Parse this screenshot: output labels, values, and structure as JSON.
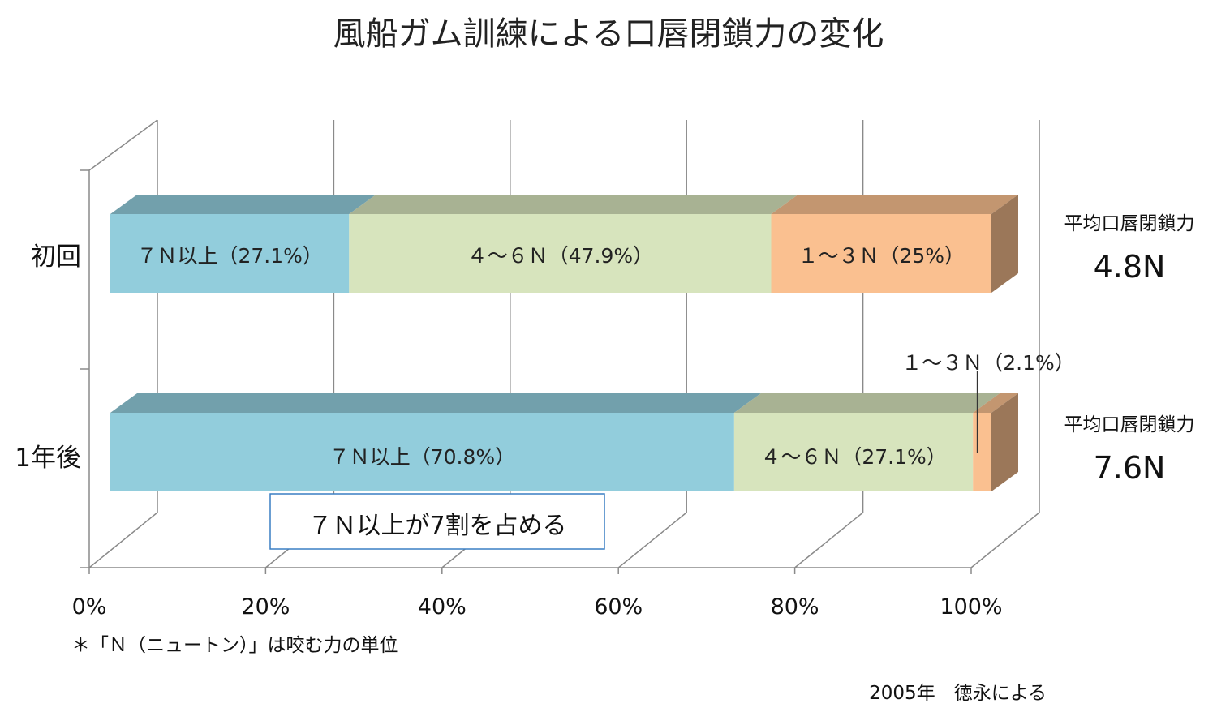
{
  "chart_data": {
    "type": "bar",
    "orientation": "horizontal",
    "stacked": "100%",
    "three_d": true,
    "title": "風船ガム訓練による口唇閉鎖力の変化",
    "categories": [
      "初回",
      "1年後"
    ],
    "xlim": [
      0,
      100
    ],
    "x_ticks": [
      "0%",
      "20%",
      "40%",
      "60%",
      "80%",
      "100%"
    ],
    "grid": true,
    "series": [
      {
        "name": "7N以上",
        "color": "#92cddc",
        "values": [
          27.1,
          70.8
        ],
        "labels": [
          "７Ｎ以上（27.1%）",
          "７Ｎ以上（70.8%）"
        ]
      },
      {
        "name": "4～6N",
        "color": "#d7e4bd",
        "values": [
          47.9,
          27.1
        ],
        "labels": [
          "４～６Ｎ（47.9%）",
          "４～６Ｎ（27.1%）"
        ]
      },
      {
        "name": "1～3N",
        "color": "#fac090",
        "values": [
          25,
          2.1
        ],
        "labels": [
          "１～３Ｎ（25%）",
          "１～３Ｎ（2.1%）"
        ]
      }
    ],
    "averages": [
      {
        "caption": "平均口唇閉鎖力",
        "value": "4.8N"
      },
      {
        "caption": "平均口唇閉鎖力",
        "value": "7.6N"
      }
    ],
    "callout": "７Ｎ以上が7割を占める",
    "footnote": "＊「Ｎ（ニュートン）」は咬む力の単位",
    "source": "2005年　徳永による"
  }
}
